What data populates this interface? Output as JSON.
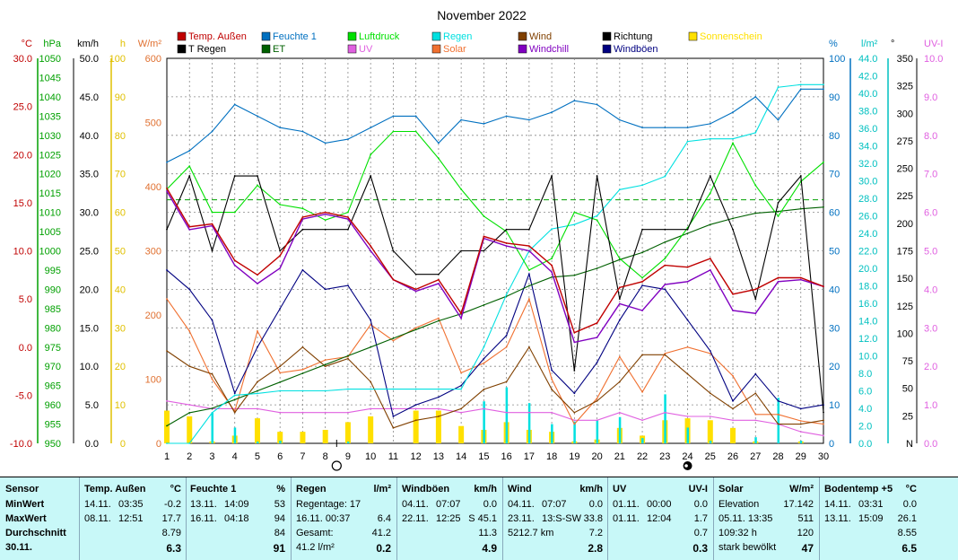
{
  "chart_data": {
    "type": "line",
    "title": "November 2022",
    "x": [
      1,
      2,
      3,
      4,
      5,
      6,
      7,
      8,
      9,
      10,
      11,
      12,
      13,
      14,
      15,
      16,
      17,
      18,
      19,
      20,
      21,
      22,
      23,
      24,
      25,
      26,
      27,
      28,
      29,
      30
    ],
    "axes_left": [
      {
        "id": "temp",
        "unit": "°C",
        "color": "#c00000",
        "min": -10,
        "max": 30,
        "ticks": [
          "-10.0",
          "-5.0",
          "0.0",
          "5.0",
          "10.0",
          "15.0",
          "20.0",
          "25.0",
          "30.0"
        ]
      },
      {
        "id": "hpa",
        "unit": "hPa",
        "color": "#00a000",
        "min": 950,
        "max": 1050,
        "ticks": [
          "950",
          "955",
          "960",
          "965",
          "970",
          "975",
          "980",
          "985",
          "990",
          "995",
          "1000",
          "1005",
          "1010",
          "1015",
          "1020",
          "1025",
          "1030",
          "1035",
          "1040",
          "1045",
          "1050"
        ]
      },
      {
        "id": "kmh",
        "unit": "km/h",
        "color": "#000000",
        "min": 0,
        "max": 50,
        "ticks": [
          "0.0",
          "5.0",
          "10.0",
          "15.0",
          "20.0",
          "25.0",
          "30.0",
          "35.0",
          "40.0",
          "45.0",
          "50.0"
        ]
      },
      {
        "id": "h",
        "unit": "h",
        "color": "#e0c000",
        "min": 0,
        "max": 100,
        "ticks": [
          "0",
          "10",
          "20",
          "30",
          "40",
          "50",
          "60",
          "70",
          "80",
          "90",
          "100"
        ]
      },
      {
        "id": "wm2",
        "unit": "W/m²",
        "color": "#e07030",
        "min": 0,
        "max": 600,
        "ticks": [
          "0",
          "100",
          "200",
          "300",
          "400",
          "500",
          "600"
        ]
      }
    ],
    "axes_right": [
      {
        "id": "pct",
        "unit": "%",
        "color": "#0070c0",
        "min": 0,
        "max": 100,
        "ticks": [
          "0",
          "10",
          "20",
          "30",
          "40",
          "50",
          "60",
          "70",
          "80",
          "90",
          "100"
        ]
      },
      {
        "id": "lm2",
        "unit": "l/m²",
        "color": "#00c0c0",
        "min": 0,
        "max": 44,
        "ticks": [
          "0.0",
          "2.0",
          "4.0",
          "6.0",
          "8.0",
          "10.0",
          "12.0",
          "14.0",
          "16.0",
          "18.0",
          "20.0",
          "22.0",
          "24.0",
          "26.0",
          "28.0",
          "30.0",
          "32.0",
          "34.0",
          "36.0",
          "38.0",
          "40.0",
          "42.0",
          "44.0"
        ]
      },
      {
        "id": "deg",
        "unit": "°",
        "color": "#000000",
        "min": 0,
        "max": 360,
        "ticks": [
          "N",
          "25",
          "50",
          "75",
          "100",
          "125",
          "150",
          "175",
          "200",
          "225",
          "250",
          "275",
          "300",
          "325",
          "350"
        ]
      },
      {
        "id": "uv",
        "unit": "UV-I",
        "color": "#e060e0",
        "min": 0,
        "max": 10,
        "ticks": [
          "0.0",
          "1.0",
          "2.0",
          "3.0",
          "4.0",
          "5.0",
          "6.0",
          "7.0",
          "8.0",
          "9.0",
          "10.0"
        ]
      }
    ],
    "legend": [
      {
        "name": "Temp. Außen",
        "color": "#c00000"
      },
      {
        "name": "Feuchte 1",
        "color": "#0070c0"
      },
      {
        "name": "Luftdruck",
        "color": "#00e000"
      },
      {
        "name": "Regen",
        "color": "#00e0e0"
      },
      {
        "name": "Wind",
        "color": "#804000"
      },
      {
        "name": "Richtung",
        "color": "#000000"
      },
      {
        "name": "Sonnenschein",
        "color": "#ffe000"
      },
      {
        "name": "T Regen",
        "color": "#000000"
      },
      {
        "name": "ET",
        "color": "#006000"
      },
      {
        "name": "UV",
        "color": "#e060e0"
      },
      {
        "name": "Solar",
        "color": "#f07030"
      },
      {
        "name": "Windchill",
        "color": "#8000c0"
      },
      {
        "name": "Windböen",
        "color": "#000080"
      }
    ],
    "series": [
      {
        "name": "Temp. Außen",
        "axis": "temp",
        "color": "#c00000",
        "values": [
          16.5,
          12.5,
          12.8,
          9,
          7.5,
          9.5,
          13.5,
          14,
          13.5,
          10.5,
          7,
          6,
          7,
          3.5,
          11.5,
          10.8,
          10.5,
          8.5,
          1.5,
          2.5,
          6.2,
          6.8,
          8.5,
          8.3,
          9.2,
          5.5,
          6,
          7.2,
          7.2,
          6.3
        ]
      },
      {
        "name": "Windchill",
        "axis": "temp",
        "color": "#8000c0",
        "values": [
          16.2,
          12.2,
          12.6,
          8.5,
          6.6,
          8.2,
          13.3,
          13.8,
          13.3,
          10,
          7,
          5.8,
          6.6,
          3,
          11.3,
          10.5,
          10,
          7.8,
          0.5,
          1,
          4.5,
          3.8,
          6.5,
          6.8,
          8,
          3.8,
          3.5,
          6.8,
          7,
          6.3
        ]
      },
      {
        "name": "Feuchte 1",
        "axis": "pct",
        "color": "#0070c0",
        "values": [
          73,
          76,
          81,
          88,
          85,
          82,
          81,
          78,
          79,
          82,
          85,
          85,
          78,
          84,
          83,
          85,
          84,
          86,
          89,
          88,
          84,
          82,
          82,
          82,
          83,
          86,
          90,
          84,
          92,
          92
        ]
      },
      {
        "name": "Luftdruck",
        "axis": "hpa",
        "color": "#00e000",
        "values": [
          1016,
          1022,
          1010,
          1010,
          1017,
          1012,
          1011,
          1008,
          1010,
          1025,
          1031,
          1031,
          1024,
          1016,
          1009,
          1005,
          995,
          998,
          1010,
          1008,
          998,
          993,
          998,
          1006,
          1015,
          1028,
          1017,
          1009,
          1018,
          1023
        ]
      },
      {
        "name": "Richtung",
        "axis": "deg",
        "color": "#000000",
        "values": [
          200,
          250,
          180,
          250,
          250,
          180,
          200,
          200,
          200,
          250,
          180,
          158,
          158,
          180,
          180,
          200,
          200,
          250,
          68,
          250,
          135,
          200,
          200,
          200,
          250,
          200,
          135,
          225,
          250,
          29
        ]
      },
      {
        "name": "Windböen",
        "axis": "kmh",
        "color": "#000080",
        "values": [
          22.5,
          20,
          16,
          6.5,
          12.5,
          17.5,
          22.5,
          20,
          20.5,
          16,
          3.5,
          5,
          6,
          7.5,
          11,
          14,
          22,
          9.5,
          6.5,
          10.5,
          16,
          20.5,
          20,
          16,
          12,
          5.5,
          9,
          5.5,
          4.5,
          5
        ]
      },
      {
        "name": "Wind",
        "axis": "kmh",
        "color": "#804000",
        "values": [
          12,
          10,
          9,
          4,
          8,
          10,
          12.5,
          10,
          11,
          8,
          2,
          3,
          3.5,
          4.5,
          7,
          8,
          12.5,
          7,
          4,
          5.5,
          8,
          11.5,
          11.5,
          9,
          6.5,
          4.5,
          6.5,
          2.5,
          2.5,
          3
        ]
      },
      {
        "name": "Solar",
        "axis": "wm2",
        "color": "#f07030",
        "values": [
          225,
          175,
          100,
          50,
          175,
          110,
          115,
          130,
          135,
          185,
          160,
          180,
          195,
          110,
          125,
          150,
          225,
          100,
          30,
          70,
          135,
          80,
          140,
          150,
          140,
          105,
          45,
          45,
          35,
          30
        ]
      },
      {
        "name": "UV",
        "axis": "uv",
        "color": "#e060e0",
        "values": [
          1.1,
          1.0,
          0.9,
          0.9,
          0.9,
          0.8,
          0.8,
          0.8,
          0.8,
          0.9,
          0.9,
          0.9,
          0.9,
          0.8,
          0.9,
          0.8,
          0.8,
          0.8,
          0.6,
          0.6,
          0.8,
          0.6,
          0.8,
          0.7,
          0.7,
          0.6,
          0.6,
          0.5,
          0.3,
          0.2
        ]
      },
      {
        "name": "ET",
        "axis": "lm2",
        "color": "#006000",
        "values": [
          2,
          3.5,
          4,
          5,
          6,
          7,
          8,
          9,
          10,
          11,
          12,
          13,
          14,
          14.8,
          15.8,
          16.8,
          18,
          19,
          19.2,
          20,
          21,
          21.8,
          23,
          24,
          25,
          25.7,
          26.3,
          26.5,
          26.8,
          27
        ]
      },
      {
        "name": "Regen",
        "axis": "lm2",
        "color": "#00e0e0",
        "values": [
          0,
          0,
          3.5,
          5.5,
          5.7,
          6,
          6,
          6,
          6.2,
          6.2,
          6.2,
          6.2,
          6.2,
          6.2,
          11,
          17,
          22,
          24.5,
          25,
          26,
          29,
          29.5,
          30.5,
          34.5,
          34.8,
          34.8,
          35.5,
          40.7,
          41,
          41
        ]
      },
      {
        "name": "T Regen",
        "axis": "lm2",
        "color": "#00e0e0",
        "values": [
          0,
          0,
          3.5,
          1.8,
          0.2,
          0.3,
          0,
          0,
          0.2,
          0,
          0,
          0,
          0,
          0,
          4.8,
          6.4,
          4.6,
          2.2,
          2.5,
          2.6,
          3,
          0.6,
          5.6,
          1.8,
          0.3,
          0,
          0.7,
          5.2,
          0.3,
          0
        ]
      },
      {
        "name": "Sonnenschein",
        "axis": "h",
        "color": "#ffe000",
        "values": [
          8.5,
          7,
          0.5,
          2,
          6.5,
          3,
          3,
          3.5,
          5.5,
          7,
          0,
          8.5,
          8.5,
          4.5,
          3.5,
          5.5,
          3.5,
          3,
          0.5,
          1,
          4,
          2,
          6,
          6.5,
          6,
          4,
          0.5,
          0,
          0.5,
          0
        ]
      }
    ],
    "dashed_reference": {
      "axis": "hpa",
      "value": 1013.25,
      "color": "#00a000"
    },
    "moon_phases": [
      {
        "day": 8.5,
        "phase": "full"
      },
      {
        "day": 24,
        "phase": "new"
      }
    ]
  },
  "stats": {
    "sensor": {
      "title": "Sensor",
      "rows": [
        "MinWert",
        "MaxWert",
        "Durchschnitt",
        "30.11."
      ]
    },
    "temp": {
      "title": "Temp. Außen",
      "unit": "°C",
      "rows": [
        [
          "14.11.",
          "03:35",
          "-0.2"
        ],
        [
          "08.11.",
          "12:51",
          "17.7"
        ],
        [
          "",
          "",
          "8.79"
        ],
        [
          "",
          "",
          "6.3"
        ]
      ]
    },
    "feuchte": {
      "title": "Feuchte 1",
      "unit": "%",
      "rows": [
        [
          "13.11.",
          "14:09",
          "53"
        ],
        [
          "16.11.",
          "04:18",
          "94"
        ],
        [
          "",
          "",
          "84"
        ],
        [
          "",
          "",
          "91"
        ]
      ]
    },
    "regen": {
      "title": "Regen",
      "unit": "l/m²",
      "rows": [
        [
          "Regentage: 17",
          ""
        ],
        [
          "16.11.  00:37",
          "6.4"
        ],
        [
          "Gesamt:",
          "41.2"
        ],
        [
          "41.2 l/m²",
          "0.2"
        ]
      ]
    },
    "windboeen": {
      "title": "Windböen",
      "unit": "km/h",
      "rows": [
        [
          "04.11.",
          "07:07",
          "0.0"
        ],
        [
          "22.11.",
          "12:25",
          "S 45.1"
        ],
        [
          "",
          "",
          "11.3"
        ],
        [
          "",
          "",
          "4.9"
        ]
      ]
    },
    "wind": {
      "title": "Wind",
      "unit": "km/h",
      "rows": [
        [
          "04.11.",
          "07:07",
          "0.0"
        ],
        [
          "23.11.",
          "13:S-SW",
          "33.8"
        ],
        [
          "5212.7 km",
          "",
          "7.2"
        ],
        [
          "",
          "",
          "2.8"
        ]
      ]
    },
    "uv": {
      "title": "UV",
      "unit": "UV-I",
      "rows": [
        [
          "01.11.",
          "00:00",
          "0.0"
        ],
        [
          "01.11.",
          "12:04",
          "1.7"
        ],
        [
          "",
          "",
          "0.7"
        ],
        [
          "",
          "",
          "0.3"
        ]
      ]
    },
    "solar": {
      "title": "Solar",
      "unit": "W/m²",
      "rows": [
        [
          "Elevation",
          "17.142"
        ],
        [
          "05.11.  13:35",
          "511"
        ],
        [
          "109:32 h",
          "120"
        ],
        [
          "stark bewölkt",
          "47"
        ]
      ]
    },
    "boden": {
      "title": "Bodentemp +5",
      "unit": "°C",
      "rows": [
        [
          "14.11.",
          "03:31",
          "0.0"
        ],
        [
          "13.11.",
          "15:09",
          "26.1"
        ],
        [
          "",
          "",
          "8.55"
        ],
        [
          "",
          "",
          "6.5"
        ]
      ]
    }
  }
}
